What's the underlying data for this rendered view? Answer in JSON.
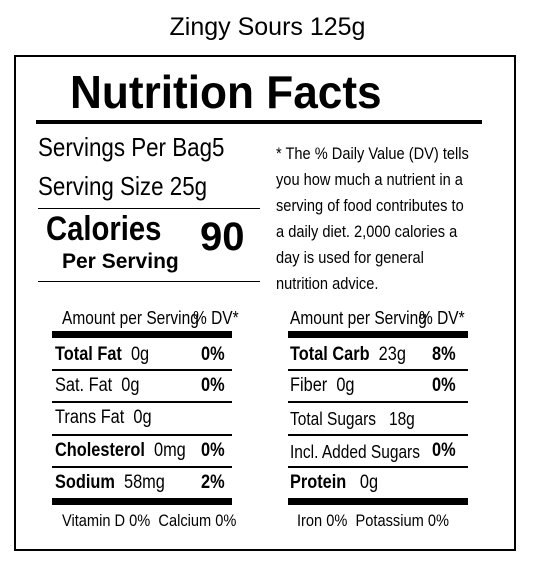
{
  "product_name": "Zingy Sours 125g",
  "title": "Nutrition Facts",
  "servings_per_bag": {
    "label": "Servings Per Bag",
    "value": "5"
  },
  "serving_size": {
    "label": "Serving Size",
    "value": "25g"
  },
  "calories": {
    "label": "Calories",
    "value": "90",
    "per": "Per Serving"
  },
  "dv_note": "* The % Daily Value (DV) tells you how much a nutrient in a serving of food contributes to a daily diet. 2,000 calories a day is used for general nutrition advice.",
  "left_table": {
    "header_amount": "Amount per Serving",
    "header_dv": "% DV*",
    "rows": [
      {
        "name": "Total Fat",
        "amount": "0g",
        "dv": "0%"
      },
      {
        "name": "Sat. Fat",
        "amount": "0g",
        "dv": "0%"
      },
      {
        "name": "Trans Fat",
        "amount": "0g"
      },
      {
        "name": "Cholesterol",
        "amount": "0mg",
        "dv": "0%"
      },
      {
        "name": "Sodium",
        "amount": "58mg",
        "dv": "2%"
      }
    ],
    "footer": "Vitamin D 0%  Calcium 0%"
  },
  "right_table": {
    "header_amount": "Amount per Serving",
    "header_dv": "% DV*",
    "rows": [
      {
        "name": "Total Carb",
        "amount": "23g",
        "dv": "8%"
      },
      {
        "name": "Fiber",
        "amount": "0g",
        "dv": "0%"
      },
      {
        "name": "Total Sugars",
        "amount": "18g"
      },
      {
        "name": "Incl. Added Sugars",
        "dv": "0%"
      },
      {
        "name": "Protein",
        "amount": "0g"
      }
    ],
    "footer": "Iron 0%  Potassium 0%"
  }
}
